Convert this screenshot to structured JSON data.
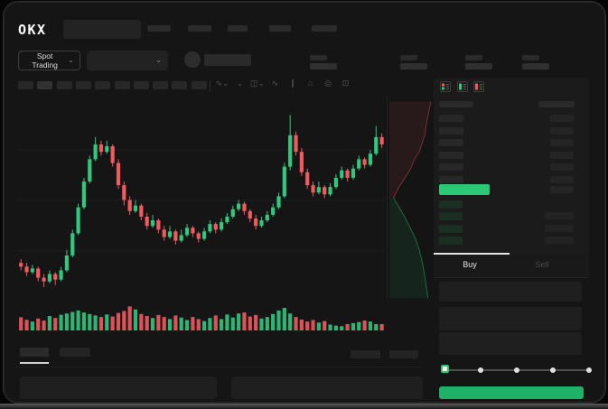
{
  "brand": {
    "logo_text": "OKX"
  },
  "header": {
    "nav_placeholder_count": 5,
    "has_search_placeholder": true
  },
  "market_selector": {
    "label": "Spot Trading",
    "chevron": "⌄"
  },
  "pair_selector": {
    "chevron": "⌄",
    "value": ""
  },
  "ticker_stats_count": 4,
  "chart_toolbar": {
    "timeframe_slots": 10,
    "icons": [
      {
        "name": "indicators-dropdown-icon",
        "glyph": "∿⌄"
      },
      {
        "name": "overlay-dropdown-icon",
        "glyph": "⌄"
      },
      {
        "name": "chart-style-dropdown-icon",
        "glyph": "◫⌄"
      },
      {
        "name": "line-chart-icon",
        "glyph": "∿"
      },
      {
        "name": "compare-icon",
        "glyph": "∥"
      },
      {
        "name": "camera-icon",
        "glyph": "⌂"
      },
      {
        "name": "settings-icon",
        "glyph": "◎"
      },
      {
        "name": "fullscreen-icon",
        "glyph": "⊡"
      }
    ]
  },
  "orderbook": {
    "mode_icons": [
      "orderbook-combined-icon",
      "orderbook-buy-icon",
      "orderbook-sell-icon"
    ],
    "ask_rows": 6,
    "bid_rows": 4,
    "price_highlighted": true
  },
  "trade_panel": {
    "tabs": [
      {
        "label": "Buy",
        "active": true
      },
      {
        "label": "Sell",
        "active": false
      }
    ],
    "form_field_count": 3,
    "slider": {
      "stops": 5,
      "active_index": 0
    }
  },
  "bottom_section": {
    "tab_slots": 2,
    "action_slots": 2,
    "panel_count": 2
  },
  "colors": {
    "up": "#31c77f",
    "down": "#f05a60",
    "price_highlight": "#2bc876",
    "buy_button": "#1db268",
    "bid_row": "#1c2f23",
    "ask_row": "#282828",
    "amount_block": "#242424"
  },
  "chart_data": {
    "type": "candlestick",
    "grid": true,
    "yrange": [
      0,
      100
    ],
    "candles": [
      [
        16,
        18,
        12,
        14
      ],
      [
        14,
        16,
        9,
        11
      ],
      [
        11,
        15,
        10,
        13
      ],
      [
        13,
        14,
        6,
        8
      ],
      [
        8,
        10,
        3,
        6
      ],
      [
        6,
        12,
        5,
        10
      ],
      [
        10,
        11,
        4,
        7
      ],
      [
        7,
        14,
        6,
        12
      ],
      [
        12,
        23,
        11,
        20
      ],
      [
        20,
        34,
        19,
        32
      ],
      [
        32,
        48,
        31,
        46
      ],
      [
        46,
        62,
        45,
        60
      ],
      [
        60,
        74,
        59,
        72
      ],
      [
        72,
        84,
        71,
        80
      ],
      [
        80,
        82,
        74,
        76
      ],
      [
        76,
        82,
        75,
        79
      ],
      [
        79,
        80,
        68,
        70
      ],
      [
        70,
        72,
        56,
        58
      ],
      [
        58,
        60,
        47,
        50
      ],
      [
        50,
        52,
        42,
        44
      ],
      [
        44,
        50,
        43,
        47
      ],
      [
        47,
        48,
        39,
        41
      ],
      [
        41,
        43,
        34,
        36
      ],
      [
        36,
        42,
        35,
        39
      ],
      [
        39,
        40,
        32,
        34
      ],
      [
        34,
        36,
        28,
        30
      ],
      [
        30,
        36,
        29,
        33
      ],
      [
        33,
        34,
        26,
        28
      ],
      [
        28,
        34,
        27,
        31
      ],
      [
        31,
        37,
        30,
        35
      ],
      [
        35,
        36,
        30,
        32
      ],
      [
        32,
        33,
        27,
        29
      ],
      [
        29,
        35,
        28,
        33
      ],
      [
        33,
        39,
        32,
        37
      ],
      [
        37,
        38,
        32,
        34
      ],
      [
        34,
        40,
        33,
        38
      ],
      [
        38,
        43,
        37,
        41
      ],
      [
        41,
        47,
        40,
        45
      ],
      [
        45,
        50,
        44,
        48
      ],
      [
        48,
        49,
        42,
        44
      ],
      [
        44,
        45,
        38,
        40
      ],
      [
        40,
        42,
        34,
        36
      ],
      [
        36,
        41,
        35,
        39
      ],
      [
        39,
        44,
        38,
        42
      ],
      [
        42,
        48,
        41,
        46
      ],
      [
        46,
        54,
        45,
        52
      ],
      [
        52,
        70,
        51,
        68
      ],
      [
        68,
        96,
        66,
        85
      ],
      [
        85,
        87,
        74,
        76
      ],
      [
        76,
        78,
        63,
        65
      ],
      [
        65,
        67,
        56,
        58
      ],
      [
        58,
        60,
        52,
        54
      ],
      [
        54,
        60,
        53,
        57
      ],
      [
        57,
        58,
        51,
        53
      ],
      [
        53,
        59,
        52,
        57
      ],
      [
        57,
        64,
        56,
        62
      ],
      [
        62,
        68,
        61,
        66
      ],
      [
        66,
        67,
        60,
        62
      ],
      [
        62,
        69,
        61,
        67
      ],
      [
        67,
        74,
        66,
        72
      ],
      [
        72,
        73,
        67,
        69
      ],
      [
        69,
        77,
        68,
        75
      ],
      [
        75,
        90,
        74,
        84
      ],
      [
        84,
        86,
        78,
        80
      ]
    ],
    "volumes": [
      45,
      35,
      28,
      40,
      32,
      50,
      42,
      55,
      60,
      66,
      72,
      64,
      58,
      52,
      46,
      56,
      48,
      62,
      70,
      88,
      76,
      58,
      50,
      42,
      54,
      46,
      38,
      52,
      44,
      34,
      46,
      38,
      30,
      42,
      52,
      38,
      56,
      44,
      60,
      64,
      48,
      54,
      40,
      46,
      58,
      72,
      82,
      60,
      46,
      36,
      28,
      34,
      24,
      30,
      16,
      12,
      10,
      18,
      22,
      26,
      32,
      28,
      18,
      18
    ]
  },
  "depth_chart": {
    "asks": [
      [
        1.0,
        0.02
      ],
      [
        0.96,
        0.06
      ],
      [
        0.9,
        0.12
      ],
      [
        0.86,
        0.18
      ],
      [
        0.8,
        0.22
      ],
      [
        0.72,
        0.27
      ],
      [
        0.6,
        0.31
      ],
      [
        0.5,
        0.36
      ],
      [
        0.38,
        0.4
      ],
      [
        0.22,
        0.45
      ],
      [
        0.1,
        0.5
      ]
    ],
    "bids": [
      [
        0.1,
        0.5
      ],
      [
        0.24,
        0.55
      ],
      [
        0.38,
        0.6
      ],
      [
        0.5,
        0.65
      ],
      [
        0.62,
        0.7
      ],
      [
        0.72,
        0.76
      ],
      [
        0.8,
        0.83
      ],
      [
        0.86,
        0.9
      ],
      [
        0.9,
        0.96
      ],
      [
        0.93,
        1.0
      ]
    ]
  }
}
